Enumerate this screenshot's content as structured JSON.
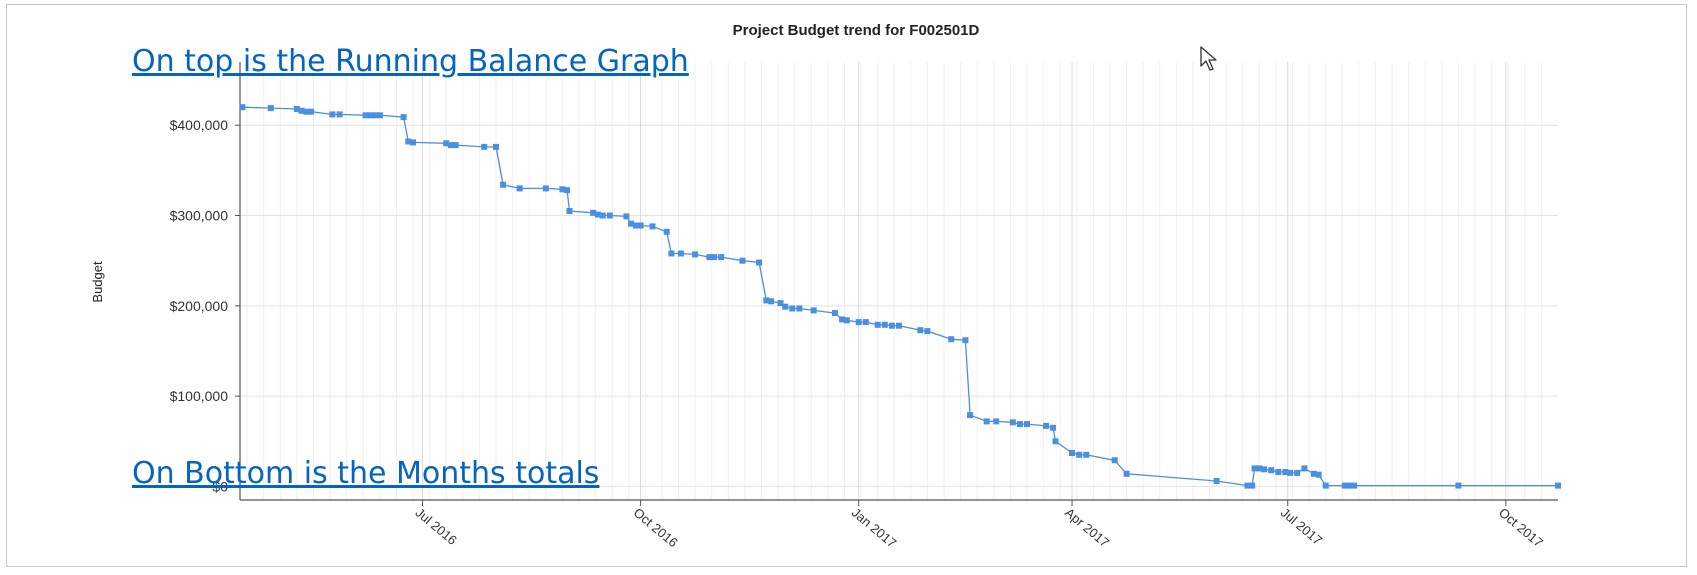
{
  "annotations": {
    "top_link": "On top is the Running Balance Graph",
    "bottom_link": "On Bottom is the Months totals"
  },
  "colors": {
    "series": "#4a90e2",
    "grid": "#e3e3e3",
    "link": "#0563c1",
    "frame": "#c8c8c8"
  },
  "icons": {
    "cursor": "mouse-pointer-icon"
  },
  "chart_data": {
    "type": "line",
    "title": "Project Budget trend for F002501D",
    "ylabel": "Budget",
    "xlabel": "",
    "x_ticks": [
      {
        "date": "2016-07-01",
        "label": "Jul 2016"
      },
      {
        "date": "2016-10-01",
        "label": "Oct 2016"
      },
      {
        "date": "2017-01-01",
        "label": "Jan 2017"
      },
      {
        "date": "2017-04-01",
        "label": "Apr 2017"
      },
      {
        "date": "2017-07-01",
        "label": "Jul 2017"
      },
      {
        "date": "2017-10-01",
        "label": "Oct 2017"
      }
    ],
    "y_ticks": [
      {
        "value": 0,
        "label": "$0"
      },
      {
        "value": 100000,
        "label": "$100,000"
      },
      {
        "value": 200000,
        "label": "$200,000"
      },
      {
        "value": 300000,
        "label": "$300,000"
      },
      {
        "value": 400000,
        "label": "$400,000"
      }
    ],
    "xlim": [
      "2016-04-15",
      "2017-10-23"
    ],
    "ylim": [
      -15000,
      470000
    ],
    "grid": true,
    "series": [
      {
        "points": [
          [
            "2016-04-16",
            420000
          ],
          [
            "2016-04-28",
            419000
          ],
          [
            "2016-05-09",
            418000
          ],
          [
            "2016-05-11",
            416000
          ],
          [
            "2016-05-13",
            415000
          ],
          [
            "2016-05-15",
            415000
          ],
          [
            "2016-05-24",
            412000
          ],
          [
            "2016-05-27",
            412000
          ],
          [
            "2016-06-07",
            411000
          ],
          [
            "2016-06-09",
            411000
          ],
          [
            "2016-06-11",
            411000
          ],
          [
            "2016-06-13",
            411000
          ],
          [
            "2016-06-23",
            409000
          ],
          [
            "2016-06-25",
            382000
          ],
          [
            "2016-06-27",
            381000
          ],
          [
            "2016-07-11",
            380000
          ],
          [
            "2016-07-13",
            378000
          ],
          [
            "2016-07-15",
            378000
          ],
          [
            "2016-07-27",
            376000
          ],
          [
            "2016-08-01",
            376000
          ],
          [
            "2016-08-04",
            334000
          ],
          [
            "2016-08-11",
            330000
          ],
          [
            "2016-08-22",
            330000
          ],
          [
            "2016-08-29",
            329000
          ],
          [
            "2016-08-31",
            328000
          ],
          [
            "2016-09-01",
            305000
          ],
          [
            "2016-09-11",
            303000
          ],
          [
            "2016-09-13",
            301000
          ],
          [
            "2016-09-15",
            300000
          ],
          [
            "2016-09-18",
            300000
          ],
          [
            "2016-09-25",
            299000
          ],
          [
            "2016-09-27",
            291000
          ],
          [
            "2016-09-29",
            289000
          ],
          [
            "2016-10-01",
            289000
          ],
          [
            "2016-10-06",
            288000
          ],
          [
            "2016-10-12",
            282000
          ],
          [
            "2016-10-14",
            258000
          ],
          [
            "2016-10-18",
            258000
          ],
          [
            "2016-10-24",
            257000
          ],
          [
            "2016-10-30",
            254000
          ],
          [
            "2016-11-01",
            254000
          ],
          [
            "2016-11-04",
            254000
          ],
          [
            "2016-11-13",
            250000
          ],
          [
            "2016-11-20",
            248000
          ],
          [
            "2016-11-23",
            206000
          ],
          [
            "2016-11-25",
            205000
          ],
          [
            "2016-11-29",
            203000
          ],
          [
            "2016-12-01",
            199000
          ],
          [
            "2016-12-04",
            197000
          ],
          [
            "2016-12-07",
            197000
          ],
          [
            "2016-12-13",
            195000
          ],
          [
            "2016-12-22",
            192000
          ],
          [
            "2016-12-25",
            185000
          ],
          [
            "2016-12-27",
            184000
          ],
          [
            "2017-01-01",
            182000
          ],
          [
            "2017-01-04",
            182000
          ],
          [
            "2017-01-09",
            179000
          ],
          [
            "2017-01-12",
            179000
          ],
          [
            "2017-01-15",
            178000
          ],
          [
            "2017-01-18",
            178000
          ],
          [
            "2017-01-27",
            173000
          ],
          [
            "2017-01-30",
            172000
          ],
          [
            "2017-02-09",
            163000
          ],
          [
            "2017-02-15",
            162000
          ],
          [
            "2017-02-17",
            79000
          ],
          [
            "2017-02-24",
            72000
          ],
          [
            "2017-02-28",
            72000
          ],
          [
            "2017-03-07",
            71000
          ],
          [
            "2017-03-10",
            69000
          ],
          [
            "2017-03-13",
            69000
          ],
          [
            "2017-03-21",
            67000
          ],
          [
            "2017-03-24",
            65000
          ],
          [
            "2017-03-25",
            50000
          ],
          [
            "2017-04-01",
            37000
          ],
          [
            "2017-04-04",
            35000
          ],
          [
            "2017-04-07",
            35000
          ],
          [
            "2017-04-19",
            29000
          ],
          [
            "2017-04-24",
            14000
          ],
          [
            "2017-06-01",
            6000
          ],
          [
            "2017-06-14",
            1000
          ],
          [
            "2017-06-16",
            1000
          ],
          [
            "2017-06-17",
            20000
          ],
          [
            "2017-06-19",
            20000
          ],
          [
            "2017-06-21",
            19000
          ],
          [
            "2017-06-24",
            18000
          ],
          [
            "2017-06-27",
            16000
          ],
          [
            "2017-06-30",
            16000
          ],
          [
            "2017-07-02",
            15000
          ],
          [
            "2017-07-05",
            15000
          ],
          [
            "2017-07-08",
            20000
          ],
          [
            "2017-07-12",
            14000
          ],
          [
            "2017-07-14",
            13000
          ],
          [
            "2017-07-17",
            1000
          ],
          [
            "2017-07-25",
            1000
          ],
          [
            "2017-07-27",
            1000
          ],
          [
            "2017-07-29",
            1000
          ],
          [
            "2017-09-11",
            1000
          ],
          [
            "2017-10-23",
            1000
          ]
        ]
      }
    ]
  }
}
